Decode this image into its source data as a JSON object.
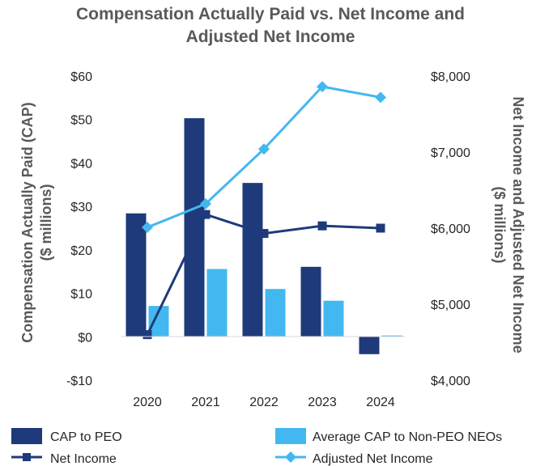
{
  "chart_data": {
    "type": "bar+line",
    "title_line1": "Compensation Actually Paid vs. Net Income and",
    "title_line2": "Adjusted Net Income",
    "categories": [
      "2020",
      "2021",
      "2022",
      "2023",
      "2024"
    ],
    "ylabel_line1": "Compensation Actually Paid (CAP)",
    "ylabel_line2": "($ millions)",
    "y2label_line1": "Net Income and Adjusted Net Income",
    "y2label_line2": "($ millions)",
    "ylim": [
      -10,
      60
    ],
    "y2lim": [
      4000,
      8000
    ],
    "y_ticks": [
      {
        "value": -10,
        "label": "-$10"
      },
      {
        "value": 0,
        "label": "$0"
      },
      {
        "value": 10,
        "label": "$10"
      },
      {
        "value": 20,
        "label": "$20"
      },
      {
        "value": 30,
        "label": "$30"
      },
      {
        "value": 40,
        "label": "$40"
      },
      {
        "value": 50,
        "label": "$50"
      },
      {
        "value": 60,
        "label": "$60"
      }
    ],
    "y2_ticks": [
      {
        "value": 4000,
        "label": "$4,000"
      },
      {
        "value": 5000,
        "label": "$5,000"
      },
      {
        "value": 6000,
        "label": "$6,000"
      },
      {
        "value": 7000,
        "label": "$7,000"
      },
      {
        "value": 8000,
        "label": "$8,000"
      }
    ],
    "bar_series": [
      {
        "name": "CAP to PEO",
        "color": "#1f3a7a",
        "values": [
          28.4,
          50.3,
          35.4,
          16.1,
          -4.0
        ]
      },
      {
        "name": "Average CAP to Non-PEO NEOs",
        "color": "#43b8f0",
        "values": [
          7.1,
          15.6,
          11.0,
          8.3,
          0.3
        ]
      }
    ],
    "line_series": [
      {
        "name": "Net Income",
        "color": "#1f3a7a",
        "marker": "square",
        "axis": "y2",
        "values": [
          4600,
          6180,
          5930,
          6030,
          6000
        ]
      },
      {
        "name": "Adjusted Net Income",
        "color": "#43b8f0",
        "marker": "diamond",
        "axis": "y2",
        "values": [
          6010,
          6320,
          7040,
          7860,
          7720
        ]
      }
    ]
  }
}
